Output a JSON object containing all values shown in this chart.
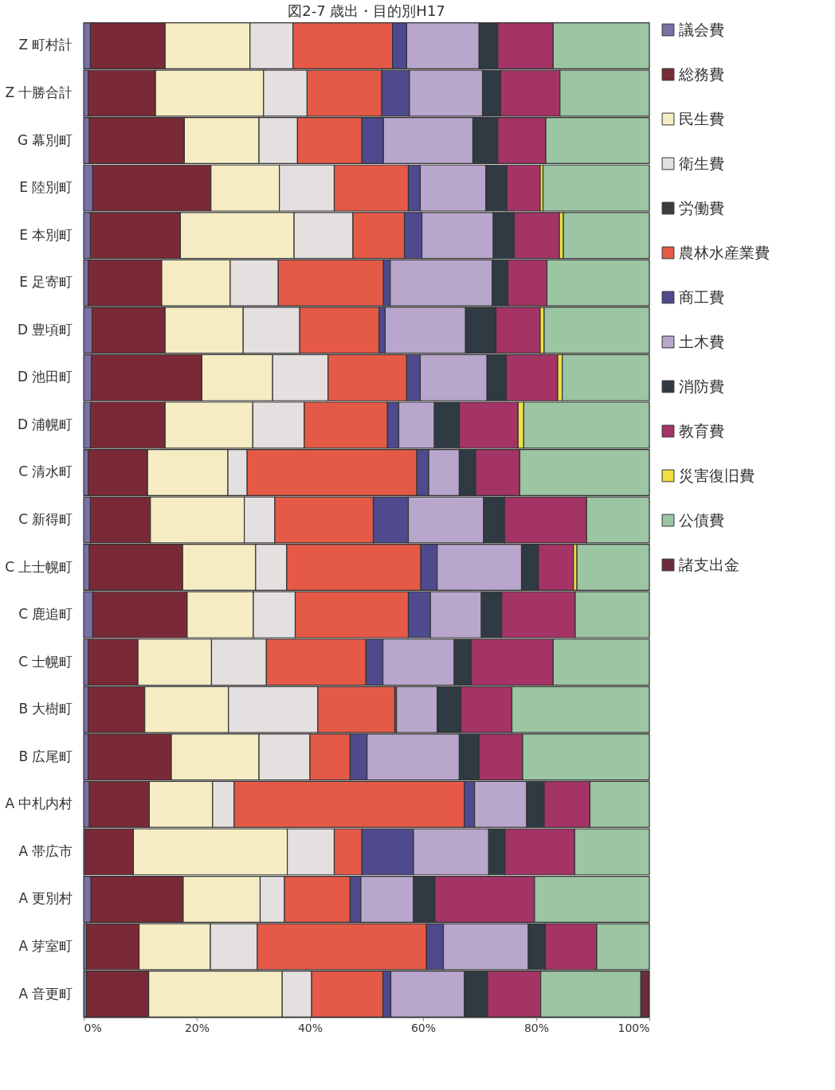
{
  "chart_data": {
    "type": "bar",
    "title": "図2-7 歳出・目的別H17",
    "orientation": "horizontal",
    "stacked": true,
    "legend": "right",
    "grid": false,
    "categories": [
      "Z 町村計",
      "Z 十勝合計",
      "G 幕別町",
      "E 陸別町",
      "E 本別町",
      "E 足寄町",
      "D 豊頃町",
      "D 池田町",
      "D 浦幌町",
      "C 清水町",
      "C 新得町",
      "C 上士幌町",
      "C 鹿追町",
      "C 士幌町",
      "B 大樹町",
      "B 広尾町",
      "A 中札内村",
      "A 帯広市",
      "A 更別村",
      "A 芽室町",
      "A 音更町"
    ],
    "xlim": [
      0,
      100
    ],
    "xticks": [
      {
        "value": 0,
        "label": "0%"
      },
      {
        "value": 20,
        "label": "20%"
      },
      {
        "value": 40,
        "label": "40%"
      },
      {
        "value": 60,
        "label": "60%"
      },
      {
        "value": 80,
        "label": "80%"
      },
      {
        "value": 100,
        "label": "100%"
      }
    ],
    "series": [
      {
        "name": "議会費",
        "color": "#7b6fa6",
        "values": [
          1.2,
          0.8,
          1.0,
          1.6,
          1.2,
          0.8,
          1.5,
          1.4,
          1.2,
          0.8,
          1.2,
          1.0,
          1.6,
          0.8,
          0.8,
          0.8,
          1.0,
          0.3,
          1.3,
          0.5,
          0.5
        ]
      },
      {
        "name": "総務費",
        "color": "#7a2a36",
        "values": [
          13.2,
          11.9,
          16.8,
          20.9,
          15.9,
          13.0,
          12.9,
          19.5,
          13.2,
          10.5,
          10.6,
          16.5,
          16.7,
          8.8,
          10.0,
          14.7,
          10.6,
          8.5,
          16.3,
          9.3,
          11.0
        ]
      },
      {
        "name": "民生費",
        "color": "#f6ecc4",
        "values": [
          15.0,
          19.1,
          13.2,
          12.1,
          20.1,
          12.1,
          13.8,
          12.5,
          15.5,
          14.2,
          16.6,
          12.9,
          11.7,
          13.0,
          14.8,
          15.5,
          11.2,
          27.2,
          13.6,
          12.6,
          23.6
        ]
      },
      {
        "name": "衛生費",
        "color": "#e4e0e0",
        "values": [
          7.6,
          7.7,
          6.8,
          9.7,
          10.4,
          8.5,
          10.0,
          9.8,
          9.1,
          3.4,
          5.4,
          5.5,
          7.4,
          9.7,
          15.8,
          9.0,
          3.8,
          8.3,
          4.3,
          8.3,
          5.2
        ]
      },
      {
        "name": "労働費",
        "color": "#3a3c40",
        "values": [
          null,
          null,
          null,
          null,
          null,
          null,
          null,
          null,
          null,
          null,
          null,
          null,
          null,
          null,
          null,
          null,
          null,
          null,
          null,
          null,
          null
        ]
      },
      {
        "name": "農林水産業費",
        "color": "#e45a47",
        "values": [
          17.6,
          13.2,
          11.4,
          13.1,
          9.1,
          18.6,
          14.0,
          13.9,
          14.7,
          30.0,
          17.4,
          23.7,
          20.0,
          17.6,
          13.6,
          7.1,
          40.7,
          4.9,
          11.6,
          29.9,
          12.6
        ]
      },
      {
        "name": "商工費",
        "color": "#4f4a8e",
        "values": [
          2.5,
          4.9,
          3.8,
          2.1,
          3.1,
          1.2,
          1.1,
          2.4,
          2.0,
          2.1,
          6.2,
          2.9,
          3.9,
          3.0,
          0.3,
          3.0,
          1.8,
          9.1,
          1.9,
          3.0,
          1.4
        ]
      },
      {
        "name": "土木費",
        "color": "#b9a6cc",
        "values": [
          12.8,
          12.9,
          15.8,
          11.6,
          12.6,
          18.0,
          14.2,
          11.8,
          6.3,
          5.4,
          13.3,
          14.9,
          9.0,
          12.6,
          7.2,
          16.3,
          9.2,
          13.3,
          9.3,
          15.0,
          13.0
        ]
      },
      {
        "name": "消防費",
        "color": "#2f3a42",
        "values": [
          3.3,
          3.2,
          4.4,
          3.7,
          3.7,
          2.8,
          5.4,
          3.4,
          4.4,
          2.9,
          3.7,
          3.0,
          3.6,
          3.0,
          4.2,
          3.5,
          3.1,
          2.9,
          3.8,
          3.0,
          4.1
        ]
      },
      {
        "name": "教育費",
        "color": "#a33465",
        "values": [
          9.8,
          10.5,
          8.5,
          5.9,
          8.0,
          6.9,
          7.8,
          9.1,
          10.4,
          7.8,
          14.5,
          6.2,
          13.0,
          14.5,
          9.0,
          7.7,
          8.1,
          12.3,
          17.6,
          9.1,
          9.4
        ]
      },
      {
        "name": "災害復旧費",
        "color": "#f0e040",
        "values": [
          null,
          null,
          null,
          0.5,
          0.7,
          null,
          0.7,
          0.8,
          1.0,
          null,
          null,
          0.6,
          null,
          null,
          null,
          null,
          null,
          null,
          null,
          null,
          null
        ]
      },
      {
        "name": "公債費",
        "color": "#9cc5a3",
        "values": [
          17.0,
          15.8,
          18.3,
          18.8,
          15.2,
          18.1,
          18.6,
          15.4,
          22.2,
          22.9,
          11.1,
          12.8,
          13.1,
          17.0,
          24.3,
          22.4,
          10.5,
          13.2,
          20.3,
          9.3,
          17.7
        ]
      },
      {
        "name": "諸支出金",
        "color": "#6b2c3c",
        "values": [
          null,
          null,
          null,
          null,
          null,
          null,
          null,
          null,
          null,
          null,
          null,
          null,
          null,
          null,
          null,
          null,
          null,
          null,
          null,
          null,
          1.5
        ]
      }
    ]
  }
}
